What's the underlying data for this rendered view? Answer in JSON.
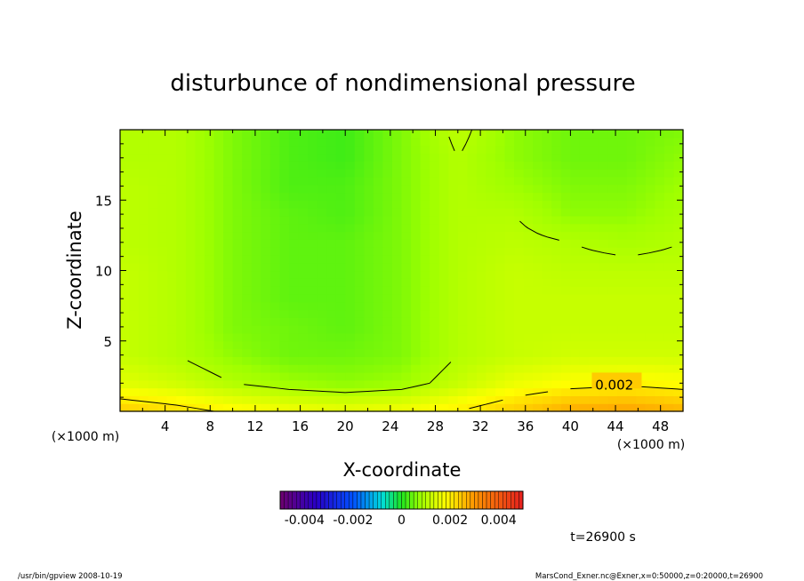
{
  "chart_data": {
    "type": "heatmap",
    "title": "disturbunce of nondimensional pressure",
    "xlabel": "X-coordinate",
    "ylabel": "Z-coordinate",
    "x_unit_note": "(×1000 m)",
    "y_unit_note": "(×1000 m)",
    "xlim": [
      0,
      50
    ],
    "ylim": [
      0,
      20
    ],
    "x_ticks": [
      "4",
      "8",
      "12",
      "16",
      "20",
      "24",
      "28",
      "32",
      "36",
      "40",
      "44",
      "48"
    ],
    "y_ticks": [
      "5",
      "10",
      "15"
    ],
    "field": {
      "x": [
        0,
        5,
        10,
        15,
        20,
        25,
        30,
        35,
        40,
        45,
        50
      ],
      "z": [
        0,
        2,
        4,
        6,
        8,
        10,
        12,
        14,
        16,
        18,
        20
      ],
      "values": [
        [
          0.0024,
          0.0022,
          0.0019,
          0.0017,
          0.0016,
          0.0017,
          0.002,
          0.0024,
          0.0028,
          0.0029,
          0.0027
        ],
        [
          0.0015,
          0.0013,
          0.001,
          0.0008,
          0.0007,
          0.0008,
          0.0012,
          0.0016,
          0.0018,
          0.0019,
          0.0018
        ],
        [
          0.0012,
          0.001,
          0.0007,
          0.0005,
          0.0005,
          0.0006,
          0.001,
          0.0012,
          0.0013,
          0.0013,
          0.0013
        ],
        [
          0.0012,
          0.001,
          0.0006,
          0.0005,
          0.0004,
          0.0006,
          0.001,
          0.0012,
          0.0012,
          0.0012,
          0.0012
        ],
        [
          0.0012,
          0.001,
          0.0006,
          0.0004,
          0.0004,
          0.0006,
          0.001,
          0.0012,
          0.0012,
          0.0012,
          0.0012
        ],
        [
          0.0012,
          0.001,
          0.0006,
          0.0004,
          0.0004,
          0.0006,
          0.001,
          0.0012,
          0.0011,
          0.0011,
          0.0011
        ],
        [
          0.0011,
          0.001,
          0.0006,
          0.0004,
          0.0004,
          0.0006,
          0.001,
          0.0011,
          0.001,
          0.0009,
          0.001
        ],
        [
          0.0011,
          0.001,
          0.0006,
          0.0004,
          0.0003,
          0.0006,
          0.001,
          0.001,
          0.0007,
          0.0007,
          0.0009
        ],
        [
          0.0011,
          0.001,
          0.0006,
          0.0003,
          0.0003,
          0.0006,
          0.001,
          0.0008,
          0.0006,
          0.0006,
          0.0008
        ],
        [
          0.001,
          0.001,
          0.0006,
          0.0003,
          0.0002,
          0.0006,
          0.001,
          0.0007,
          0.0005,
          0.0005,
          0.0007
        ],
        [
          0.001,
          0.001,
          0.0006,
          0.0003,
          0.0002,
          0.0006,
          0.0011,
          0.0007,
          0.0005,
          0.0005,
          0.0006
        ]
      ]
    },
    "contour_label": "0.002",
    "colorbar": {
      "min": -0.005,
      "max": 0.005,
      "tick_labels": [
        "-0.004",
        "-0.002",
        "0",
        "0.002",
        "0.004"
      ]
    },
    "time_label": "t=26900 s"
  },
  "footer": {
    "left": "/usr/bin/gpview   2008-10-19",
    "right": "MarsCond_Exner.nc@Exner,x=0:50000,z=0:20000,t=26900"
  }
}
